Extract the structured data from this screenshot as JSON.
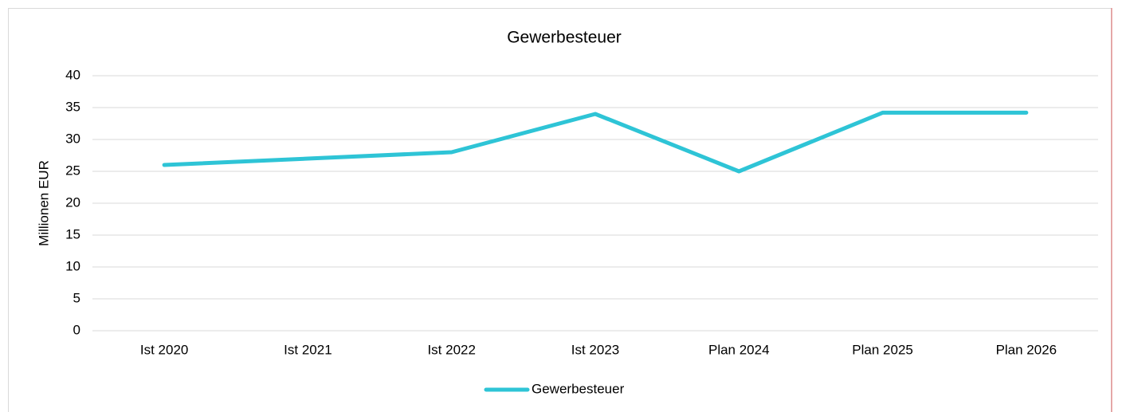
{
  "chart_data": {
    "type": "line",
    "title": "Gewerbesteuer",
    "y_label": "Millionen EUR",
    "categories": [
      "Ist 2020",
      "Ist 2021",
      "Ist 2022",
      "Ist 2023",
      "Plan 2024",
      "Plan 2025",
      "Plan 2026"
    ],
    "series": [
      {
        "name": "Gewerbesteuer",
        "color": "#2ec4d6",
        "values": [
          26,
          27,
          28,
          34,
          25,
          34.2,
          34.2
        ]
      }
    ],
    "ylim": [
      0,
      40
    ],
    "yticks": [
      0,
      5,
      10,
      15,
      20,
      25,
      30,
      35,
      40
    ],
    "grid": true,
    "legend": "bottom"
  }
}
